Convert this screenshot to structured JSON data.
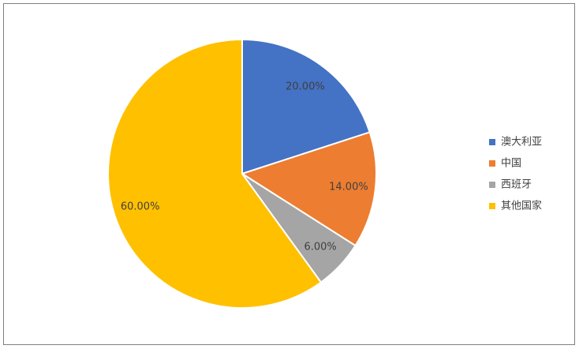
{
  "chart_data": {
    "type": "pie",
    "categories": [
      "澳大利亚",
      "中国",
      "西班牙",
      "其他国家"
    ],
    "values": [
      20,
      14,
      6,
      60
    ],
    "value_labels": [
      "20.00%",
      "14.00%",
      "6.00%",
      "60.00%"
    ],
    "colors": [
      "#4472c4",
      "#ed7d31",
      "#a5a5a5",
      "#ffc000"
    ],
    "legend": "right"
  }
}
